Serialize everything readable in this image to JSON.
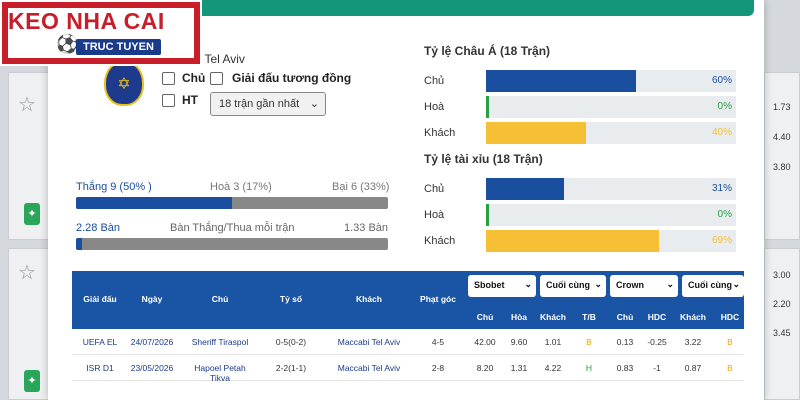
{
  "background": {
    "odds": [
      "1.73",
      "4.40",
      "3.80",
      "3.00",
      "2.20",
      "3.45"
    ]
  },
  "logo": {
    "line1": "KEO NHA CAI",
    "line2": "TRUC TUYEN"
  },
  "team": {
    "name": "bi Tel Aviv"
  },
  "filters": {
    "home_label": "Chủ",
    "same_league_label": "Giải đấu tương đồng",
    "ht_label": "HT",
    "recent_select": "18 trận gần nhất"
  },
  "asian": {
    "title": "Tỷ lệ Châu Á (18 Trận)",
    "rows": [
      {
        "label": "Chủ",
        "value": 60,
        "text": "60%",
        "color": "#1a4fa0"
      },
      {
        "label": "Hoà",
        "value": 0,
        "text": "0%",
        "color": "#27a045"
      },
      {
        "label": "Khách",
        "value": 40,
        "text": "40%",
        "color": "#f5c036"
      }
    ]
  },
  "ou": {
    "title": "Tỷ lệ tài xỉu (18 Trận)",
    "rows": [
      {
        "label": "Chủ",
        "value": 31,
        "text": "31%",
        "color": "#1a4fa0"
      },
      {
        "label": "Hoà",
        "value": 0,
        "text": "0%",
        "color": "#27a045"
      },
      {
        "label": "Khách",
        "value": 69,
        "text": "69%",
        "color": "#f5c036"
      }
    ]
  },
  "summary": {
    "win": "Thắng 9 (50% )",
    "draw": "Hoà 3 (17%)",
    "loss": "Bại 6 (33%)",
    "win_share": 50,
    "goals_for": "2.28 Bàn",
    "goals_label": "Bàn Thắng/Thua mỗi trận",
    "goals_against": "1.33 Bàn",
    "goals_share": 2
  },
  "table": {
    "headers": {
      "league": "Giải đấu",
      "date": "Ngày",
      "home": "Chủ",
      "score": "Tỷ số",
      "away": "Khách",
      "corner": "Phạt góc"
    },
    "dropdowns": [
      "Sbobet",
      "Cuối cùng",
      "Crown",
      "Cuối cùng"
    ],
    "subheaders": [
      "Chủ",
      "Hòa",
      "Khách",
      "T/B",
      "Chủ",
      "HDC",
      "Khách",
      "HDC"
    ],
    "rows": [
      {
        "league": "UEFA EL",
        "date": "24/07/2026",
        "home": "Sheriff Tiraspol",
        "score": "0-5(0-2)",
        "away": "Maccabi Tel Aviv",
        "corner": "4-5",
        "o1": "42.00",
        "o2": "9.60",
        "o3": "1.01",
        "tb": "B",
        "h1": "0.13",
        "h2": "-0.25",
        "h3": "3.22",
        "h4": "B"
      },
      {
        "league": "ISR D1",
        "date": "23/05/2026",
        "home": "Hapoel Petah Tikva",
        "score": "2-2(1-1)",
        "away": "Maccabi Tel Aviv",
        "corner": "2-8",
        "o1": "8.20",
        "o2": "1.31",
        "o3": "4.22",
        "tb": "H",
        "h1": "0.83",
        "h2": "-1",
        "h3": "0.87",
        "h4": "B"
      }
    ]
  },
  "colors": {
    "brand_red": "#c81e2a",
    "table_blue": "#1a55a5",
    "accent_green": "#14967a"
  }
}
